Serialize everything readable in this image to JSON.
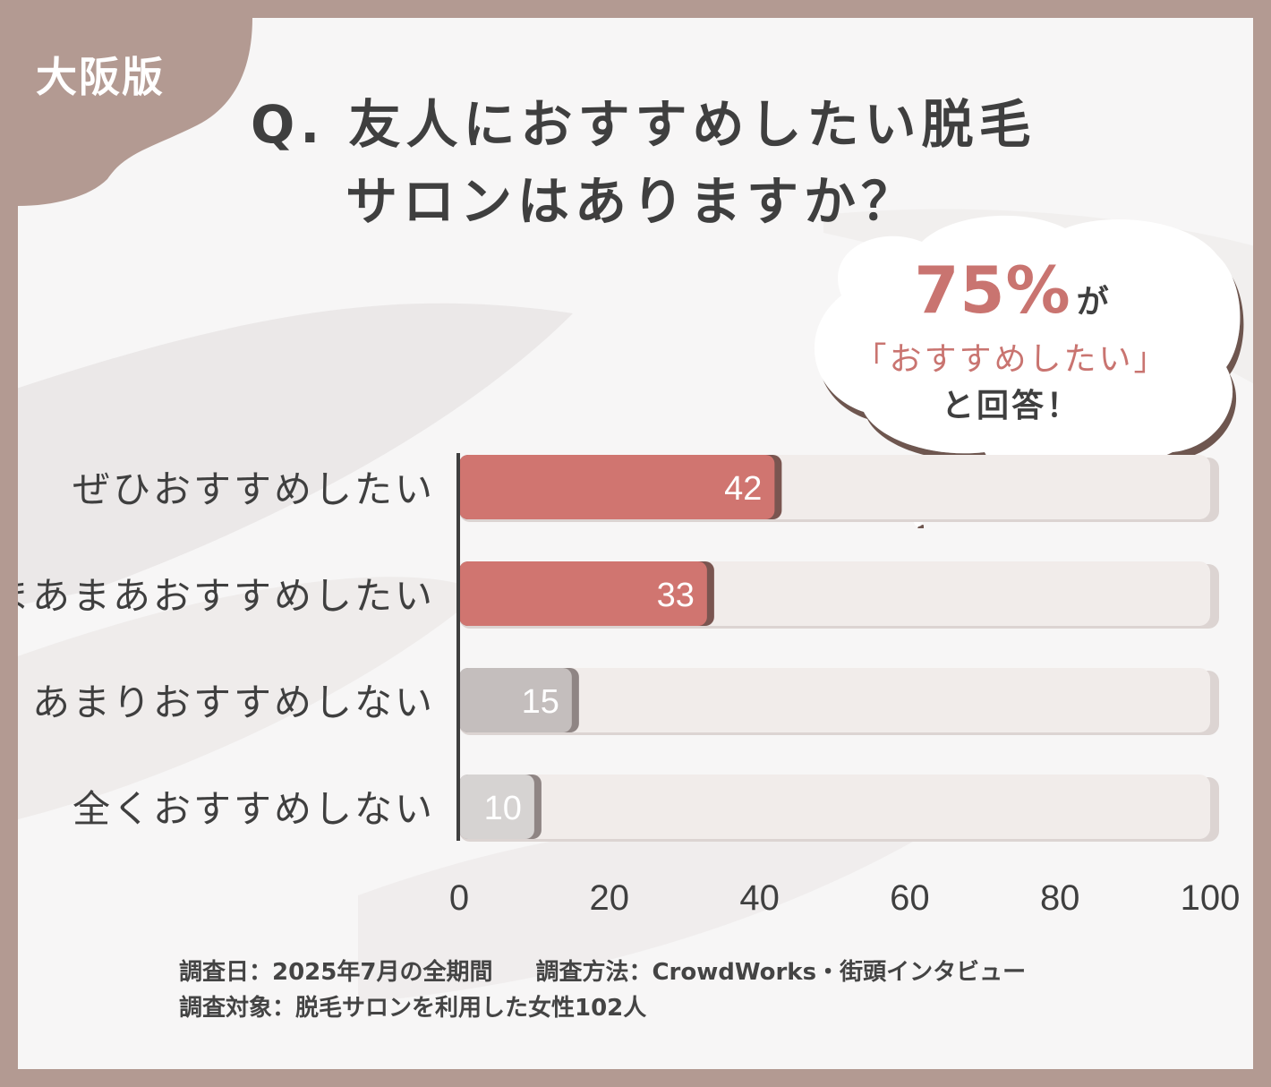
{
  "badge": "大阪版",
  "title": {
    "line1": "Q. 友人におすすめしたい脱毛",
    "line2": "サロンはありますか？"
  },
  "callout": {
    "percent": "75%",
    "ga": "が",
    "recommend": "「おすすめしたい」",
    "answered": "と回答！"
  },
  "chart_data": {
    "type": "bar",
    "orientation": "horizontal",
    "categories": [
      "ぜひおすすめしたい",
      "まあまあおすすめしたい",
      "あまりおすすめしない",
      "全くおすすめしない"
    ],
    "values": [
      42,
      33,
      15,
      10
    ],
    "data_labels": [
      "42",
      "33",
      "15",
      "10"
    ],
    "xlim": [
      0,
      100
    ],
    "xticks": [
      "0",
      "20",
      "40",
      "60",
      "80",
      "100"
    ],
    "grid": false,
    "colors": {
      "positive": "#d07570",
      "positive_edge": "#7a5550",
      "negative": "#c4bebd",
      "negative_light": "#d6d3d2",
      "negative_edge": "#8f8584",
      "track": "#f1ecea",
      "axis": "#3f3f3f"
    }
  },
  "footer": {
    "date": "調査日：2025年7月の全期間",
    "method": "調査方法：CrowdWorks・街頭インタビュー",
    "target": "調査対象：脱毛サロンを利用した女性102人"
  },
  "colors": {
    "frame": "#b39a92",
    "card": "#f7f6f6",
    "text": "#3f3f3f",
    "accent": "#c97470"
  }
}
